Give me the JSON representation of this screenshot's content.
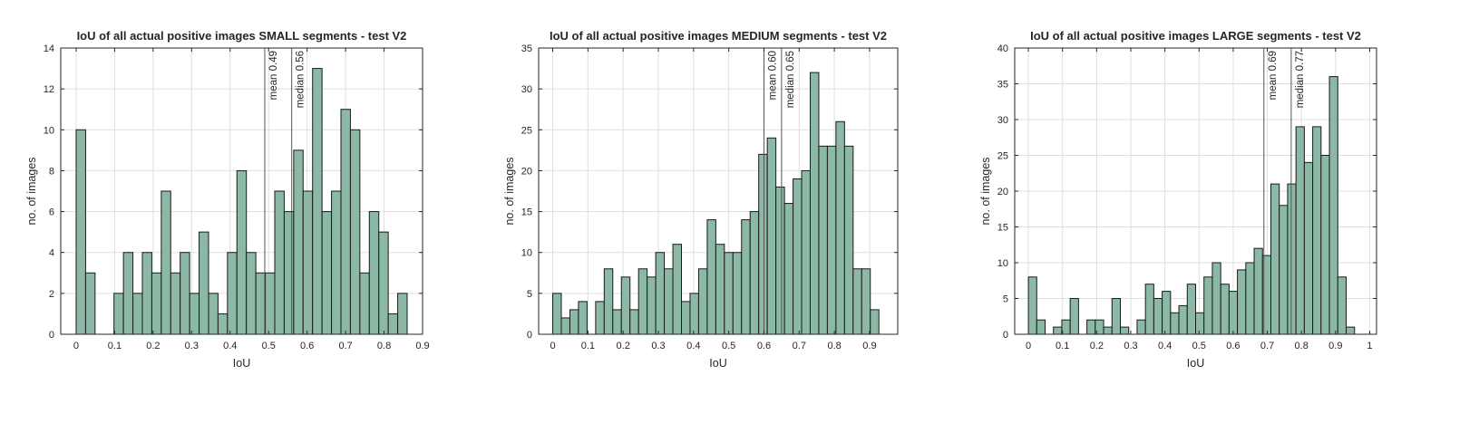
{
  "chart_data": [
    {
      "type": "bar",
      "title": "IoU of all actual positive images SMALL segments - test V2",
      "xlabel": "IoU",
      "ylabel": "no. of images",
      "xlim": [
        -0.04,
        0.9
      ],
      "ylim": [
        0,
        14
      ],
      "xticks": [
        0,
        0.1,
        0.2,
        0.3,
        0.4,
        0.5,
        0.6,
        0.7,
        0.8,
        0.9
      ],
      "xtick_labels": [
        "0",
        "0.1",
        "0.2",
        "0.3",
        "0.4",
        "0.5",
        "0.6",
        "0.7",
        "0.8",
        "0.9"
      ],
      "yticks": [
        0,
        2,
        4,
        6,
        8,
        10,
        12,
        14
      ],
      "ytick_labels": [
        "0",
        "2",
        "4",
        "6",
        "8",
        "10",
        "12",
        "14"
      ],
      "grid": true,
      "bin_start": 0,
      "bin_width": 0.02457,
      "values": [
        10,
        3,
        0,
        0,
        2,
        4,
        2,
        4,
        3,
        7,
        3,
        4,
        2,
        5,
        2,
        1,
        4,
        8,
        4,
        3,
        3,
        7,
        6,
        9,
        7,
        13,
        6,
        7,
        11,
        10,
        3,
        6,
        5,
        1,
        2
      ],
      "vlines": [
        {
          "x": 0.49,
          "label": "mean 0.49"
        },
        {
          "x": 0.56,
          "label": "median 0.56"
        }
      ],
      "color": "#8cb8a6"
    },
    {
      "type": "bar",
      "title": "IoU of all actual positive images MEDIUM segments - test V2",
      "xlabel": "IoU",
      "ylabel": "no. of images",
      "xlim": [
        -0.04,
        0.98
      ],
      "ylim": [
        0,
        35
      ],
      "xticks": [
        0,
        0.1,
        0.2,
        0.3,
        0.4,
        0.5,
        0.6,
        0.7,
        0.8,
        0.9
      ],
      "xtick_labels": [
        "0",
        "0.1",
        "0.2",
        "0.3",
        "0.4",
        "0.5",
        "0.6",
        "0.7",
        "0.8",
        "0.9"
      ],
      "yticks": [
        0,
        5,
        10,
        15,
        20,
        25,
        30,
        35
      ],
      "ytick_labels": [
        "0",
        "5",
        "10",
        "15",
        "20",
        "25",
        "30",
        "35"
      ],
      "grid": true,
      "bin_start": 0,
      "bin_width": 0.02438,
      "values": [
        5,
        2,
        3,
        4,
        0,
        4,
        8,
        3,
        7,
        3,
        8,
        7,
        10,
        8,
        11,
        4,
        5,
        8,
        14,
        11,
        10,
        10,
        14,
        15,
        22,
        24,
        18,
        16,
        19,
        20,
        32,
        23,
        23,
        26,
        23,
        8,
        8,
        3
      ],
      "vlines": [
        {
          "x": 0.6,
          "label": "mean 0.60"
        },
        {
          "x": 0.65,
          "label": "median 0.65"
        }
      ],
      "color": "#8cb8a6"
    },
    {
      "type": "bar",
      "title": "IoU of all actual positive images LARGE segments - test V2",
      "xlabel": "IoU",
      "ylabel": "no. of images",
      "xlim": [
        -0.04,
        1.02
      ],
      "ylim": [
        0,
        40
      ],
      "xticks": [
        0,
        0.1,
        0.2,
        0.3,
        0.4,
        0.5,
        0.6,
        0.7,
        0.8,
        0.9,
        1
      ],
      "xtick_labels": [
        "0",
        "0.1",
        "0.2",
        "0.3",
        "0.4",
        "0.5",
        "0.6",
        "0.7",
        "0.8",
        "0.9",
        "1"
      ],
      "yticks": [
        0,
        5,
        10,
        15,
        20,
        25,
        30,
        35,
        40
      ],
      "ytick_labels": [
        "0",
        "5",
        "10",
        "15",
        "20",
        "25",
        "30",
        "35",
        "40"
      ],
      "grid": true,
      "bin_start": 0,
      "bin_width": 0.0245,
      "values": [
        8,
        2,
        0,
        1,
        2,
        5,
        0,
        2,
        2,
        1,
        5,
        1,
        0,
        2,
        7,
        5,
        6,
        3,
        4,
        7,
        3,
        8,
        10,
        7,
        6,
        9,
        10,
        12,
        11,
        21,
        18,
        21,
        29,
        24,
        29,
        25,
        36,
        8,
        1
      ],
      "vlines": [
        {
          "x": 0.69,
          "label": "mean 0.69"
        },
        {
          "x": 0.77,
          "label": "median 0.77"
        }
      ],
      "color": "#8cb8a6"
    }
  ]
}
